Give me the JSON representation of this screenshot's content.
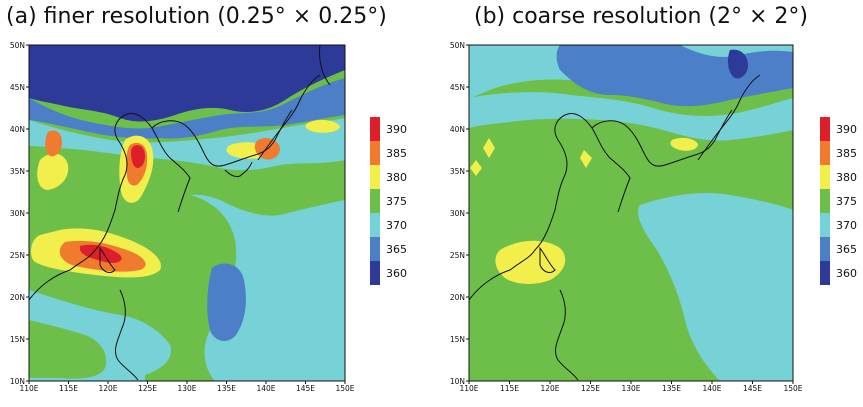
{
  "panels": [
    {
      "title": "(a) finer resolution (0.25° × 0.25°)",
      "lat_labels": [
        "50N",
        "45N",
        "40N",
        "35N",
        "30N",
        "25N",
        "20N",
        "15N",
        "10N"
      ],
      "lon_labels": [
        "110E",
        "115E",
        "120E",
        "125E",
        "130E",
        "135E",
        "140E",
        "145E",
        "150E"
      ]
    },
    {
      "title": "(b) coarse resolution (2° × 2°)",
      "lat_labels": [
        "50N",
        "45N",
        "40N",
        "35N",
        "30N",
        "25N",
        "20N",
        "15N",
        "10N"
      ],
      "lon_labels": [
        "110E",
        "115E",
        "120E",
        "125E",
        "130E",
        "135E",
        "140E",
        "145E",
        "150E"
      ]
    }
  ],
  "colorbar": {
    "levels": [
      "390",
      "385",
      "380",
      "375",
      "370",
      "365",
      "360"
    ],
    "colors": [
      "#dc1f2a",
      "#f07a2e",
      "#f2ee4c",
      "#6ebf4a",
      "#76d2d6",
      "#4c7fc8",
      "#2d3a98"
    ]
  },
  "palette": {
    "v360": "#2d3a98",
    "v365": "#4c7fc8",
    "v370": "#76d2d6",
    "v375": "#6ebf4a",
    "v380": "#f2ee4c",
    "v385": "#f07a2e",
    "v390": "#dc1f2a"
  }
}
